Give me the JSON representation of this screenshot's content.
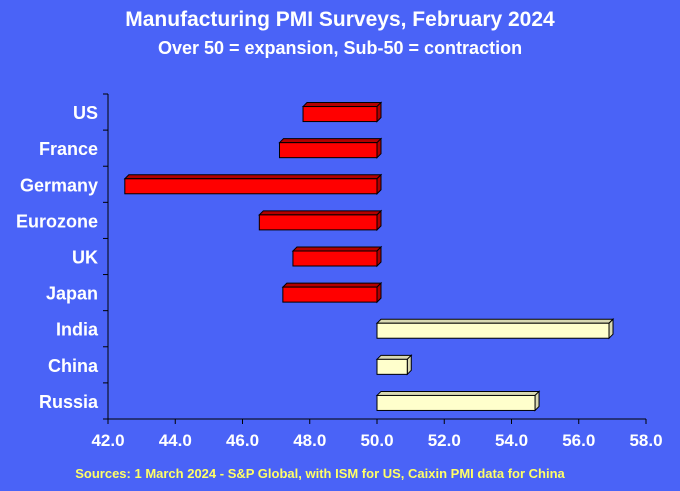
{
  "chart_data": {
    "type": "bar",
    "orientation": "horizontal",
    "title": "Manufacturing PMI Surveys, February 2024",
    "subtitle": "Over 50 = expansion, Sub-50 = contraction",
    "source": "Sources: 1 March 2024 - S&P Global, with ISM for US, Caixin PMI data for China",
    "categories": [
      "US",
      "France",
      "Germany",
      "Eurozone",
      "UK",
      "Japan",
      "India",
      "China",
      "Russia"
    ],
    "values": [
      47.8,
      47.1,
      42.5,
      46.5,
      47.5,
      47.2,
      56.9,
      50.9,
      54.7
    ],
    "baseline": 50.0,
    "xlim": [
      42.0,
      58.0
    ],
    "xticks": [
      "42.0",
      "44.0",
      "46.0",
      "48.0",
      "50.0",
      "52.0",
      "54.0",
      "56.0",
      "58.0"
    ],
    "grid": false,
    "colors": {
      "background": "#4a63f7",
      "contraction": "#ff0000",
      "expansion": "#ffffcc",
      "bar_side": "#d9d9b3",
      "source_text": "#ffff66"
    }
  }
}
